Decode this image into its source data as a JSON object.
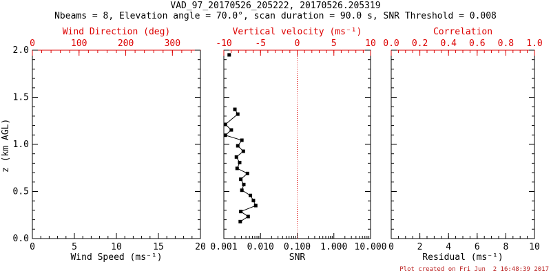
{
  "title": "VAD_97_20170526_205222, 20170526.205319",
  "subtitle": "Nbeams = 8, Elevation angle = 70.0°, scan duration = 90.0 s, SNR Threshold = 0.008",
  "footer": "Plot created on Fri Jun  2 16:48:39 2017",
  "colors": {
    "frame": "#000000",
    "secondary_axis": "#dd0000",
    "data": "#000000",
    "refline": "#dd0000",
    "footer_text": "#bb2222",
    "background": "#ffffff"
  },
  "y_axis": {
    "label": "z (km AGL)",
    "lim": [
      0,
      2
    ],
    "tick_values": [
      0,
      0.5,
      1,
      1.5,
      2
    ],
    "tick_labels": [
      "0.0",
      "0.5",
      "1.0",
      "1.5",
      "2.0"
    ],
    "minor_step": 0.1
  },
  "chart_data": [
    {
      "type": "scatter",
      "name": "wind-panel",
      "bottom_axis": {
        "label": "Wind Speed (ms⁻¹)",
        "lim": [
          0,
          20
        ],
        "tick_values": [
          0,
          5,
          10,
          15,
          20
        ],
        "tick_labels": [
          "0",
          "5",
          "10",
          "15",
          "20"
        ],
        "minor_step": 1
      },
      "top_axis": {
        "label": "Wind Direction (deg)",
        "lim": [
          0,
          360
        ],
        "tick_values": [
          0,
          100,
          200,
          300
        ],
        "tick_labels": [
          "0",
          "100",
          "200",
          "300"
        ],
        "minor_step": 20
      },
      "profile": {
        "z": [],
        "snr": []
      }
    },
    {
      "type": "line-scatter",
      "name": "snr-panel",
      "bottom_axis": {
        "label": "SNR",
        "scale": "log",
        "lim": [
          0.001,
          10
        ],
        "tick_values": [
          0.001,
          0.01,
          0.1,
          1,
          10
        ],
        "tick_labels": [
          "0.001",
          "0.010",
          "0.100",
          "1.000",
          "10.000"
        ]
      },
      "top_axis": {
        "label": "Vertical velocity (ms⁻¹)",
        "lim": [
          -10,
          10
        ],
        "tick_values": [
          -10,
          -5,
          0,
          5,
          10
        ],
        "tick_labels": [
          "-10",
          "-5",
          "0",
          "5",
          "10"
        ],
        "minor_step": 1
      },
      "refline": {
        "axis": "top",
        "value": 0,
        "style": "dotted"
      },
      "profile": {
        "z": [
          1.372,
          1.321,
          1.212,
          1.153,
          1.097,
          1.044,
          0.985,
          0.927,
          0.866,
          0.807,
          0.745,
          0.691,
          0.63,
          0.574,
          0.513,
          0.458,
          0.404,
          0.35,
          0.287,
          0.234,
          0.18
        ],
        "snr": [
          0.002,
          0.0024,
          0.0011,
          0.0016,
          0.0011,
          0.0031,
          0.0024,
          0.0034,
          0.0022,
          0.0027,
          0.0023,
          0.0044,
          0.0029,
          0.0035,
          0.0031,
          0.0053,
          0.0064,
          0.0074,
          0.0029,
          0.0046,
          0.0028
        ]
      },
      "isolated_point": {
        "z": 1.95,
        "snr": 0.0014
      }
    },
    {
      "type": "scatter",
      "name": "residual-panel",
      "bottom_axis": {
        "label": "Residual (ms⁻¹)",
        "lim": [
          0,
          10
        ],
        "tick_values": [
          0,
          2,
          4,
          6,
          8,
          10
        ],
        "tick_labels": [
          "0",
          "2",
          "4",
          "6",
          "8",
          "10"
        ],
        "minor_step": 0.5
      },
      "top_axis": {
        "label": "Correlation",
        "lim": [
          0,
          1
        ],
        "tick_values": [
          0,
          0.2,
          0.4,
          0.6,
          0.8,
          1
        ],
        "tick_labels": [
          "0.0",
          "0.2",
          "0.4",
          "0.6",
          "0.8",
          "1.0"
        ],
        "minor_step": 0.05
      },
      "profile": {
        "z": [],
        "snr": []
      }
    }
  ]
}
